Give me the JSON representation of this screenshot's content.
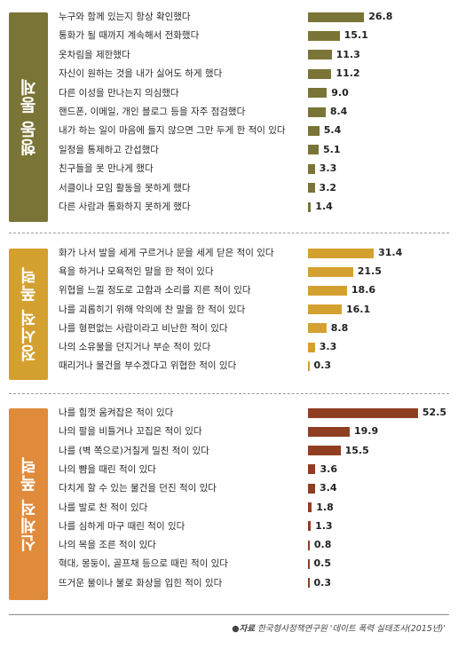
{
  "chart_data": [
    {
      "type": "bar",
      "category_label": "행동 통제",
      "color": "#7a7436",
      "categories": [
        "누구와 함께 있는지 항상 확인했다",
        "통화가 될 때까지 계속해서 전화했다",
        "옷차림을 제한했다",
        "자신이 원하는 것을 내가 싫어도 하게 했다",
        "다른 이성을 만나는지 의심했다",
        "핸드폰, 이메일, 개인 블로그 등을 자주 점검했다",
        "내가 하는 일이 마음에 들지 않으면 그만 두게 한 적이 있다",
        "일정을 통제하고 간섭했다",
        "친구들을 못 만나게 했다",
        "서클이나 모임 활동을 못하게 했다",
        "다른 사람과 통화하지 못하게 했다"
      ],
      "values": [
        26.8,
        15.1,
        11.3,
        11.2,
        9.0,
        8.4,
        5.4,
        5.1,
        3.3,
        3.2,
        1.4
      ],
      "value_labels": [
        "26.8",
        "15.1",
        "11.3",
        "11.2",
        "9.0",
        "8.4",
        "5.4",
        "5.1",
        "3.3",
        "3.2",
        "1.4"
      ]
    },
    {
      "type": "bar",
      "category_label": "정서적 폭력",
      "color": "#d4a030",
      "categories": [
        "화가 나서 발을 세게 구르거나 문을 세게 닫은 적이 있다",
        "욕을 하거나 모욕적인 말을 한 적이 있다",
        "위협을 느낄 정도로 고함과 소리를 지른 적이 있다",
        "나를 괴롭히기 위해 악의에 찬 말을 한 적이 있다",
        "나를 형편없는 사람이라고 비난한 적이 있다",
        "나의 소유물을 던지거나 부순 적이 있다",
        "때리거나 물건을 부수겠다고 위협한 적이 있다"
      ],
      "values": [
        31.4,
        21.5,
        18.6,
        16.1,
        8.8,
        3.3,
        0.3
      ],
      "value_labels": [
        "31.4",
        "21.5",
        "18.6",
        "16.1",
        "8.8",
        "3.3",
        "0.3"
      ]
    },
    {
      "type": "bar",
      "category_label": "신체적 폭력",
      "color": "#8f3e22",
      "label_color": "#e08a3c",
      "categories": [
        "나를 힘껏 움켜잡은 적이 있다",
        "나의 팔을 비틀거나 꼬집은 적이 있다",
        "나를 (벽 쪽으로)거칠게 밀친 적이 있다",
        "나의 뺨을 때린 적이 있다",
        "다치게 할 수 있는 물건을 던진 적이 있다",
        "나를 발로 찬 적이 있다",
        "나를 심하게 마구 때린 적이 있다",
        "나의 목을 조른 적이 있다",
        "혁대, 몽둥이, 골프채 등으로 때린 적이 있다",
        "뜨거운 물이나 불로 화상을 입힌 적이 있다"
      ],
      "values": [
        52.5,
        19.9,
        15.5,
        3.6,
        3.4,
        1.8,
        1.3,
        0.8,
        0.5,
        0.3
      ],
      "value_labels": [
        "52.5",
        "19.9",
        "15.5",
        "3.6",
        "3.4",
        "1.8",
        "1.3",
        "0.8",
        "0.5",
        "0.3"
      ]
    }
  ],
  "source": {
    "prefix": "●자료",
    "text": "한국형사정책연구원 '데이트 폭력 실태조사(2015년)'"
  }
}
